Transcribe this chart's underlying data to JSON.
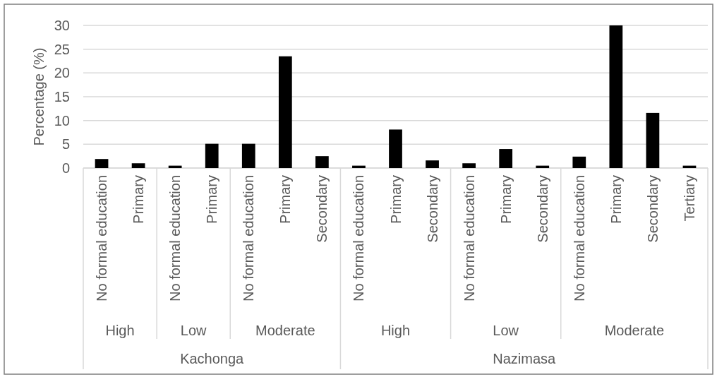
{
  "chart_data": {
    "type": "bar",
    "ylabel": "Percentage (%)",
    "categories": [
      "No formal education",
      "Primary",
      "No formal education",
      "Primary",
      "No formal education",
      "Primary",
      "Secondary",
      "No formal education",
      "Primary",
      "Secondary",
      "No formal education",
      "Primary",
      "Secondary",
      "No formal education",
      "Primary",
      "Secondary",
      "Tertiary"
    ],
    "values": [
      1.9,
      1.0,
      0.5,
      5.1,
      5.1,
      23.5,
      2.5,
      0.5,
      8.1,
      1.6,
      1.0,
      4.0,
      0.5,
      2.4,
      30.0,
      11.6,
      0.5
    ],
    "color": "#000000",
    "ylim": [
      0,
      30
    ],
    "yticks": [
      0,
      5,
      10,
      15,
      20,
      25,
      30
    ],
    "grid": "y",
    "annotations": [
      "High",
      "Low",
      "Moderate",
      "High",
      "Low",
      "Moderate",
      "Kachonga",
      "Nazimasa"
    ]
  }
}
